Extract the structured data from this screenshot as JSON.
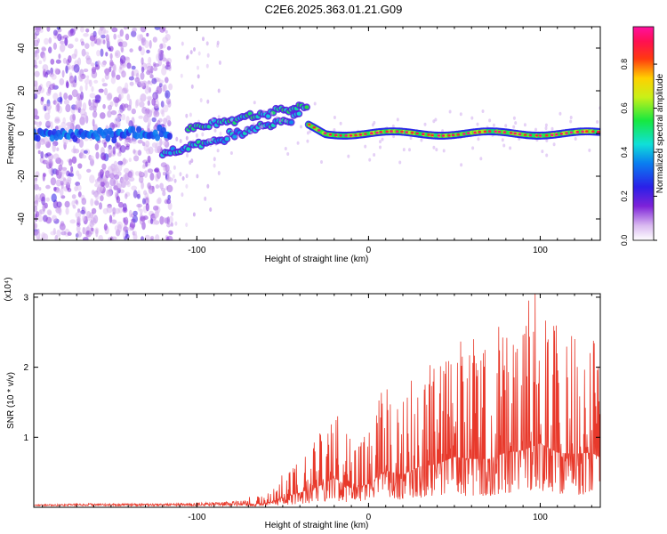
{
  "title": "C2E6.2025.363.01.21.G09",
  "colors": {
    "snr_line": "#e8392b",
    "axis": "#000000",
    "background": "#ffffff"
  },
  "chart_data": [
    {
      "type": "heatmap",
      "title": "C2E6.2025.363.01.21.G09",
      "xlabel": "Height of straight line (km)",
      "ylabel": "Frequency (Hz)",
      "xlim": [
        -195,
        135
      ],
      "ylim": [
        -50,
        50
      ],
      "x_ticks": [
        -100,
        0,
        100
      ],
      "y_ticks": [
        -40,
        -20,
        0,
        20,
        40
      ],
      "colorbar": {
        "label": "Normalized spectral amplitude",
        "range": [
          0,
          0.97
        ],
        "ticks": [
          "0.0",
          "0.2",
          "0.4",
          "0.6",
          "0.8"
        ],
        "tick_values": [
          0.0,
          0.2,
          0.4,
          0.6,
          0.8
        ],
        "colormap": "rainbow (white-violet-blue-cyan-green-yellow-red-magenta)"
      },
      "features": [
        {
          "name": "broadband noise",
          "x_range": [
            -195,
            -115
          ],
          "freq_range": [
            -50,
            50
          ],
          "amplitude": 0.15
        },
        {
          "name": "main band",
          "x": [
            -195,
            -115
          ],
          "freq": 0,
          "amplitude": 0.25
        },
        {
          "name": "upper rising branch",
          "x": [
            -105,
            -35
          ],
          "freq_start": 2,
          "freq_end": 13,
          "amplitude": 0.4
        },
        {
          "name": "lower rising branch",
          "x": [
            -120,
            -40
          ],
          "freq_start": -10,
          "freq_end": 8,
          "amplitude": 0.35
        },
        {
          "name": "stable line",
          "x": [
            -35,
            135
          ],
          "freq": 0,
          "amplitude": 0.85
        }
      ]
    },
    {
      "type": "line",
      "xlabel": "Height of straight line (km)",
      "ylabel": "SNR (10 * v/v)",
      "y_multiplier": "(x10⁴)",
      "xlim": [
        -195,
        135
      ],
      "ylim": [
        0,
        3.05
      ],
      "x_ticks": [
        -100,
        0,
        100
      ],
      "y_ticks": [
        1,
        2,
        3
      ],
      "series": [
        {
          "name": "SNR",
          "x": [
            -195,
            -160,
            -120,
            -80,
            -60,
            -50,
            -40,
            -30,
            -20,
            -10,
            0,
            10,
            20,
            30,
            40,
            50,
            60,
            70,
            80,
            90,
            100,
            110,
            120,
            130,
            135
          ],
          "envelope": [
            0.03,
            0.06,
            0.05,
            0.1,
            0.18,
            0.45,
            0.7,
            0.95,
            1.4,
            0.9,
            1.1,
            1.75,
            1.55,
            1.95,
            2.05,
            2.4,
            2.3,
            2.3,
            2.6,
            2.7,
            3.05,
            2.6,
            2.55,
            2.6,
            2.35
          ]
        }
      ]
    }
  ]
}
